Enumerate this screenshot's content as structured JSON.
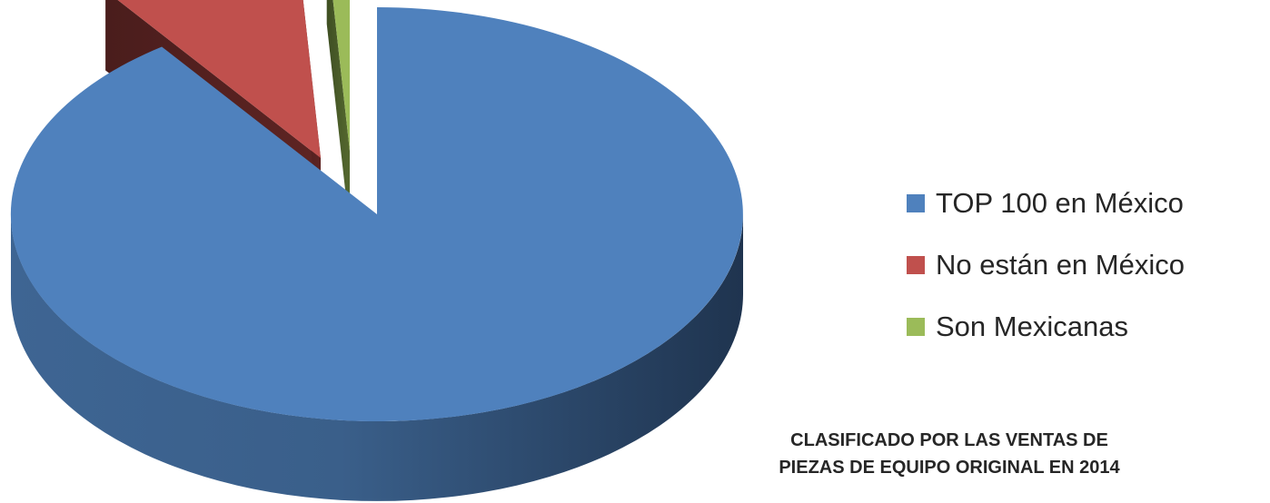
{
  "chart_data": {
    "type": "pie",
    "style": "3d-exploded",
    "series": [
      {
        "name": "TOP 100 en México",
        "value": 90,
        "color": "#4F81BD"
      },
      {
        "name": "No están en México",
        "value": 9,
        "color": "#C0504D"
      },
      {
        "name": "Son Mexicanas",
        "value": 1,
        "color": "#9BBB59"
      }
    ],
    "legend_position": "right",
    "caption": [
      "CLASIFICADO POR LAS VENTAS DE",
      "PIEZAS DE EQUIPO ORIGINAL EN 2014"
    ]
  }
}
